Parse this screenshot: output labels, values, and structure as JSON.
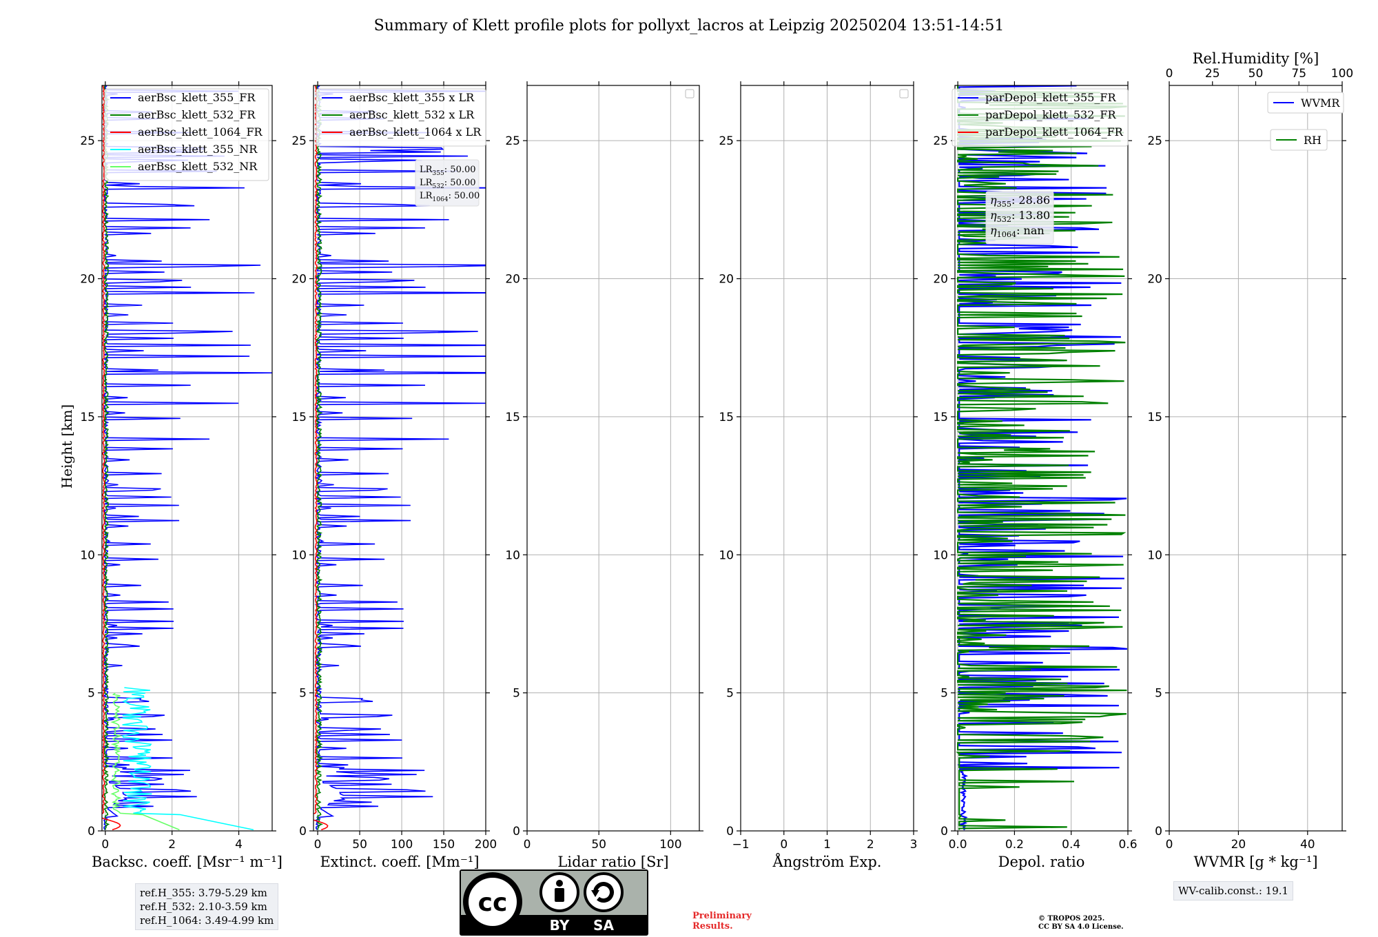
{
  "title": "Summary of Klett profile plots for pollyxt_lacros at Leipzig 20250204 13:51-14:51",
  "colors": {
    "b355": "#0000ff",
    "g532": "#008000",
    "r1064": "#ff0000",
    "c355nr": "#00ffff",
    "lg532nr": "#66ff66",
    "grid": "#b0b0b0"
  },
  "chart_data": [
    {
      "type": "line",
      "id": "backscatter",
      "xlabel": "Backsc. coeff. [Msr⁻¹ m⁻¹]",
      "ylabel": "Height [km]",
      "xlim": [
        -0.1,
        5
      ],
      "ylim": [
        0,
        27
      ],
      "xticks": [
        0,
        2,
        4
      ],
      "yticks": [
        0,
        5,
        10,
        15,
        20,
        25
      ],
      "legend": [
        "aerBsc_klett_355_FR",
        "aerBsc_klett_532_FR",
        "aerBsc_klett_1064_FR",
        "aerBsc_klett_355_NR",
        "aerBsc_klett_532_NR"
      ],
      "legend_position": "upper left",
      "series": [
        {
          "name": "aerBsc_klett_355_FR",
          "color": "#0000ff",
          "role": "fr355_bsc"
        },
        {
          "name": "aerBsc_klett_532_FR",
          "color": "#008000",
          "role": "fr532_bsc"
        },
        {
          "name": "aerBsc_klett_1064_FR",
          "color": "#ff0000",
          "role": "fr1064_bsc"
        },
        {
          "name": "aerBsc_klett_355_NR",
          "color": "#00ffff",
          "role": "nr355_bsc"
        },
        {
          "name": "aerBsc_klett_532_NR",
          "color": "#66ff66",
          "role": "nr532_bsc"
        }
      ]
    },
    {
      "type": "line",
      "id": "extinction",
      "xlabel": "Extinct. coeff. [Mm⁻¹]",
      "xlim": [
        -5,
        200
      ],
      "ylim": [
        0,
        27
      ],
      "xticks": [
        0,
        50,
        100,
        150,
        200
      ],
      "yticks": [
        0,
        5,
        10,
        15,
        20,
        25
      ],
      "legend": [
        "aerBsc_klett_355 x LR",
        "aerBsc_klett_532 x LR",
        "aerBsc_klett_1064 x LR"
      ],
      "legend_position": "upper left",
      "annotation": [
        {
          "base": "LR",
          "sub": "355",
          "value": ": 50.00"
        },
        {
          "base": "LR",
          "sub": "532",
          "value": ": 50.00"
        },
        {
          "base": "LR",
          "sub": "1064",
          "value": ": 50.00"
        }
      ],
      "series": [
        {
          "name": "aerBsc_klett_355 x LR",
          "color": "#0000ff",
          "role": "fr355_ext"
        },
        {
          "name": "aerBsc_klett_532 x LR",
          "color": "#008000",
          "role": "fr532_ext"
        },
        {
          "name": "aerBsc_klett_1064 x LR",
          "color": "#ff0000",
          "role": "fr1064_ext"
        }
      ]
    },
    {
      "type": "line",
      "id": "lidar_ratio",
      "xlabel": "Lidar ratio [Sr]",
      "xlim": [
        0,
        120
      ],
      "ylim": [
        0,
        27
      ],
      "xticks": [
        0,
        50,
        100
      ],
      "yticks": [
        0,
        5,
        10,
        15,
        20,
        25
      ],
      "legend": [],
      "series": []
    },
    {
      "type": "line",
      "id": "angstrom",
      "xlabel": "Ångström Exp.",
      "xlim": [
        -1,
        3
      ],
      "ylim": [
        0,
        27
      ],
      "xticks": [
        -1,
        0,
        1,
        2,
        3
      ],
      "yticks": [
        0,
        5,
        10,
        15,
        20,
        25
      ],
      "legend": [],
      "series": []
    },
    {
      "type": "line",
      "id": "depol",
      "xlabel": "Depol. ratio",
      "xlim": [
        -0.01,
        0.6
      ],
      "ylim": [
        0,
        27
      ],
      "xticks": [
        0.0,
        0.2,
        0.4,
        0.6
      ],
      "xtick_labels": [
        "0.0",
        "0.2",
        "0.4",
        "0.6"
      ],
      "yticks": [
        0,
        5,
        10,
        15,
        20,
        25
      ],
      "legend": [
        "parDepol_klett_355_FR",
        "parDepol_klett_532_FR",
        "parDepol_klett_1064_FR"
      ],
      "legend_position": "upper left",
      "annotation": [
        {
          "base": "η",
          "sub": "355",
          "value": ": 28.86"
        },
        {
          "base": "η",
          "sub": "532",
          "value": ": 13.80"
        },
        {
          "base": "η",
          "sub": "1064",
          "value": ": nan"
        }
      ],
      "series": [
        {
          "name": "parDepol_klett_355_FR",
          "color": "#0000ff",
          "role": "fr355_dep"
        },
        {
          "name": "parDepol_klett_532_FR",
          "color": "#008000",
          "role": "fr532_dep"
        },
        {
          "name": "parDepol_klett_1064_FR",
          "color": "#ff0000",
          "role": "none"
        }
      ]
    },
    {
      "type": "line",
      "id": "wvmr",
      "xlabel": "WVMR [g * kg⁻¹]",
      "x2label": "Rel.Humidity [%]",
      "xlim": [
        0,
        50
      ],
      "x2lim": [
        0,
        100
      ],
      "ylim": [
        0,
        27
      ],
      "xticks": [
        0,
        20,
        40
      ],
      "x2ticks": [
        0,
        25,
        50,
        75,
        100
      ],
      "yticks": [
        0,
        5,
        10,
        15,
        20,
        25
      ],
      "legend": [
        "WVMR",
        "RH"
      ],
      "series": [
        {
          "name": "WVMR",
          "color": "#0000ff"
        },
        {
          "name": "RH",
          "color": "#008000"
        }
      ]
    }
  ],
  "ref_heights": [
    "ref.H_355: 3.79-5.29 km",
    "ref.H_532: 2.10-3.59 km",
    "ref.H_1064: 3.49-4.99 km"
  ],
  "wv_calib": "WV-calib.const.: 19.1",
  "preliminary": [
    "Preliminary",
    "Results."
  ],
  "copyright": [
    "© TROPOS 2025.",
    "CC BY SA 4.0 License."
  ],
  "license_badge": {
    "cc": "cc",
    "by": "BY",
    "sa": "SA"
  }
}
